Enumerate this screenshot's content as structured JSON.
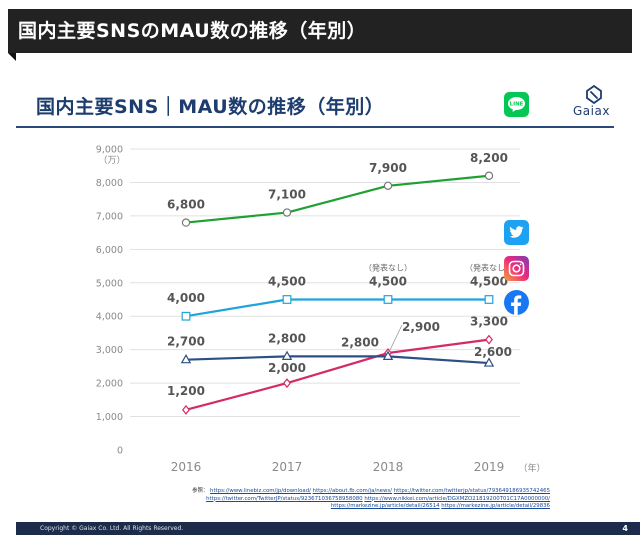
{
  "header": {
    "title": "国内主要SNSのMAU数の推移（年別）"
  },
  "slide": {
    "title": "国内主要SNS｜MAU数の推移（年別）",
    "logo_text": "Gaiax",
    "references_label": "参照：",
    "references": [
      "https://www.linebiz.com/jp/download/",
      "https://about.fb.com/ja/news/",
      "https://twitter.com/twitterjp/status/793649186935742465",
      "https://twitter.com/TwitterJP/status/923671036758958080",
      "https://www.nikkei.com/article/DGXMZO21819200T01C17A0000000/",
      "https://markezine.jp/article/detail/26514",
      "https://markezine.jp/article/detail/29836"
    ],
    "footer_copyright": "Copyright © Gaiax Co. Ltd. All Rights Reserved.",
    "page_number": "4"
  },
  "icons": {
    "line": "line-logo-icon",
    "twitter": "twitter-logo-icon",
    "instagram": "instagram-logo-icon",
    "facebook": "facebook-logo-icon",
    "line_text": "LINE"
  },
  "chart_data": {
    "type": "line",
    "x": [
      "2016",
      "2017",
      "2018",
      "2019"
    ],
    "x_unit": "（年）",
    "y_unit": "（万）",
    "ylim": [
      0,
      9000
    ],
    "yticks": [
      "0",
      "1,000",
      "2,000",
      "3,000",
      "4,000",
      "5,000",
      "6,000",
      "7,000",
      "8,000",
      "9,000"
    ],
    "grid": true,
    "series": [
      {
        "name": "LINE",
        "color": "#1fa033",
        "marker": "circle",
        "values": [
          6800,
          7100,
          7900,
          8200
        ],
        "labels": [
          "6,800",
          "7,100",
          "7,900",
          "8,200"
        ]
      },
      {
        "name": "Twitter",
        "color": "#1fa3dc",
        "marker": "square",
        "values": [
          4000,
          4500,
          4500,
          4500
        ],
        "labels": [
          "4,000",
          "4,500",
          "4,500",
          "4,500"
        ],
        "notes": [
          "",
          "",
          "（発表なし）",
          "（発表なし）"
        ]
      },
      {
        "name": "Instagram",
        "color": "#d42a68",
        "marker": "diamond",
        "values": [
          1200,
          2000,
          2900,
          3300
        ],
        "labels": [
          "1,200",
          "2,000",
          "2,900",
          "3,300"
        ]
      },
      {
        "name": "Facebook",
        "color": "#2c4f86",
        "marker": "triangle",
        "values": [
          2700,
          2800,
          2800,
          2600
        ],
        "labels": [
          "2,700",
          "2,800",
          "2,800",
          "2,600"
        ]
      }
    ]
  }
}
